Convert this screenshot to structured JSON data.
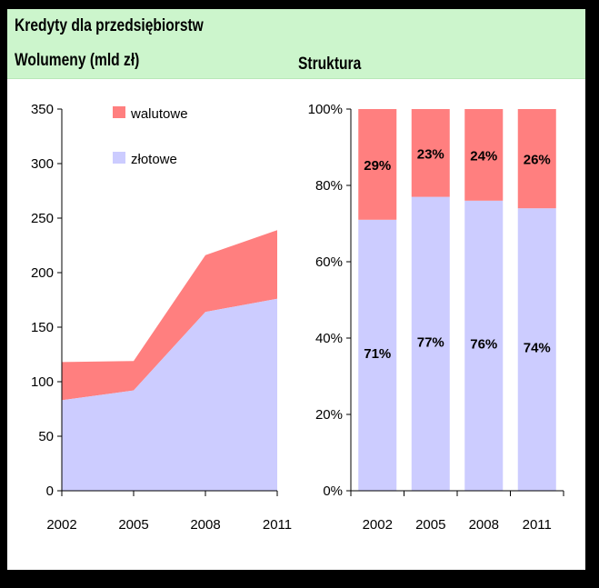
{
  "header": {
    "title": "Kredyty dla przedsiębiorstw",
    "left_subtitle": "Wolumeny (mld zł)",
    "right_subtitle": "Struktura"
  },
  "colors": {
    "walutowe": "#ff7f7f",
    "zlotowe": "#ccccff",
    "header_bg": "#ccf5cc"
  },
  "chart_data": [
    {
      "type": "area",
      "stacked": true,
      "title": "Wolumeny (mld zł)",
      "x": [
        "2002",
        "2005",
        "2008",
        "2011"
      ],
      "ylim": [
        0,
        350
      ],
      "yticks": [
        0,
        50,
        100,
        150,
        200,
        250,
        300,
        350
      ],
      "legend_position": "top-left",
      "series": [
        {
          "name": "złotowe",
          "values": [
            83,
            92,
            164,
            176
          ]
        },
        {
          "name": "walutowe",
          "values": [
            35,
            27,
            52,
            63
          ]
        }
      ]
    },
    {
      "type": "bar",
      "stacked": true,
      "percent": true,
      "title": "Struktura",
      "categories": [
        "2002",
        "2005",
        "2008",
        "2011"
      ],
      "ylim": [
        0,
        100
      ],
      "yticks": [
        "0%",
        "20%",
        "40%",
        "60%",
        "80%",
        "100%"
      ],
      "series": [
        {
          "name": "złotowe",
          "values": [
            71,
            77,
            76,
            74
          ],
          "labels": [
            "71%",
            "77%",
            "76%",
            "74%"
          ]
        },
        {
          "name": "walutowe",
          "values": [
            29,
            23,
            24,
            26
          ],
          "labels": [
            "29%",
            "23%",
            "24%",
            "26%"
          ]
        }
      ]
    }
  ]
}
